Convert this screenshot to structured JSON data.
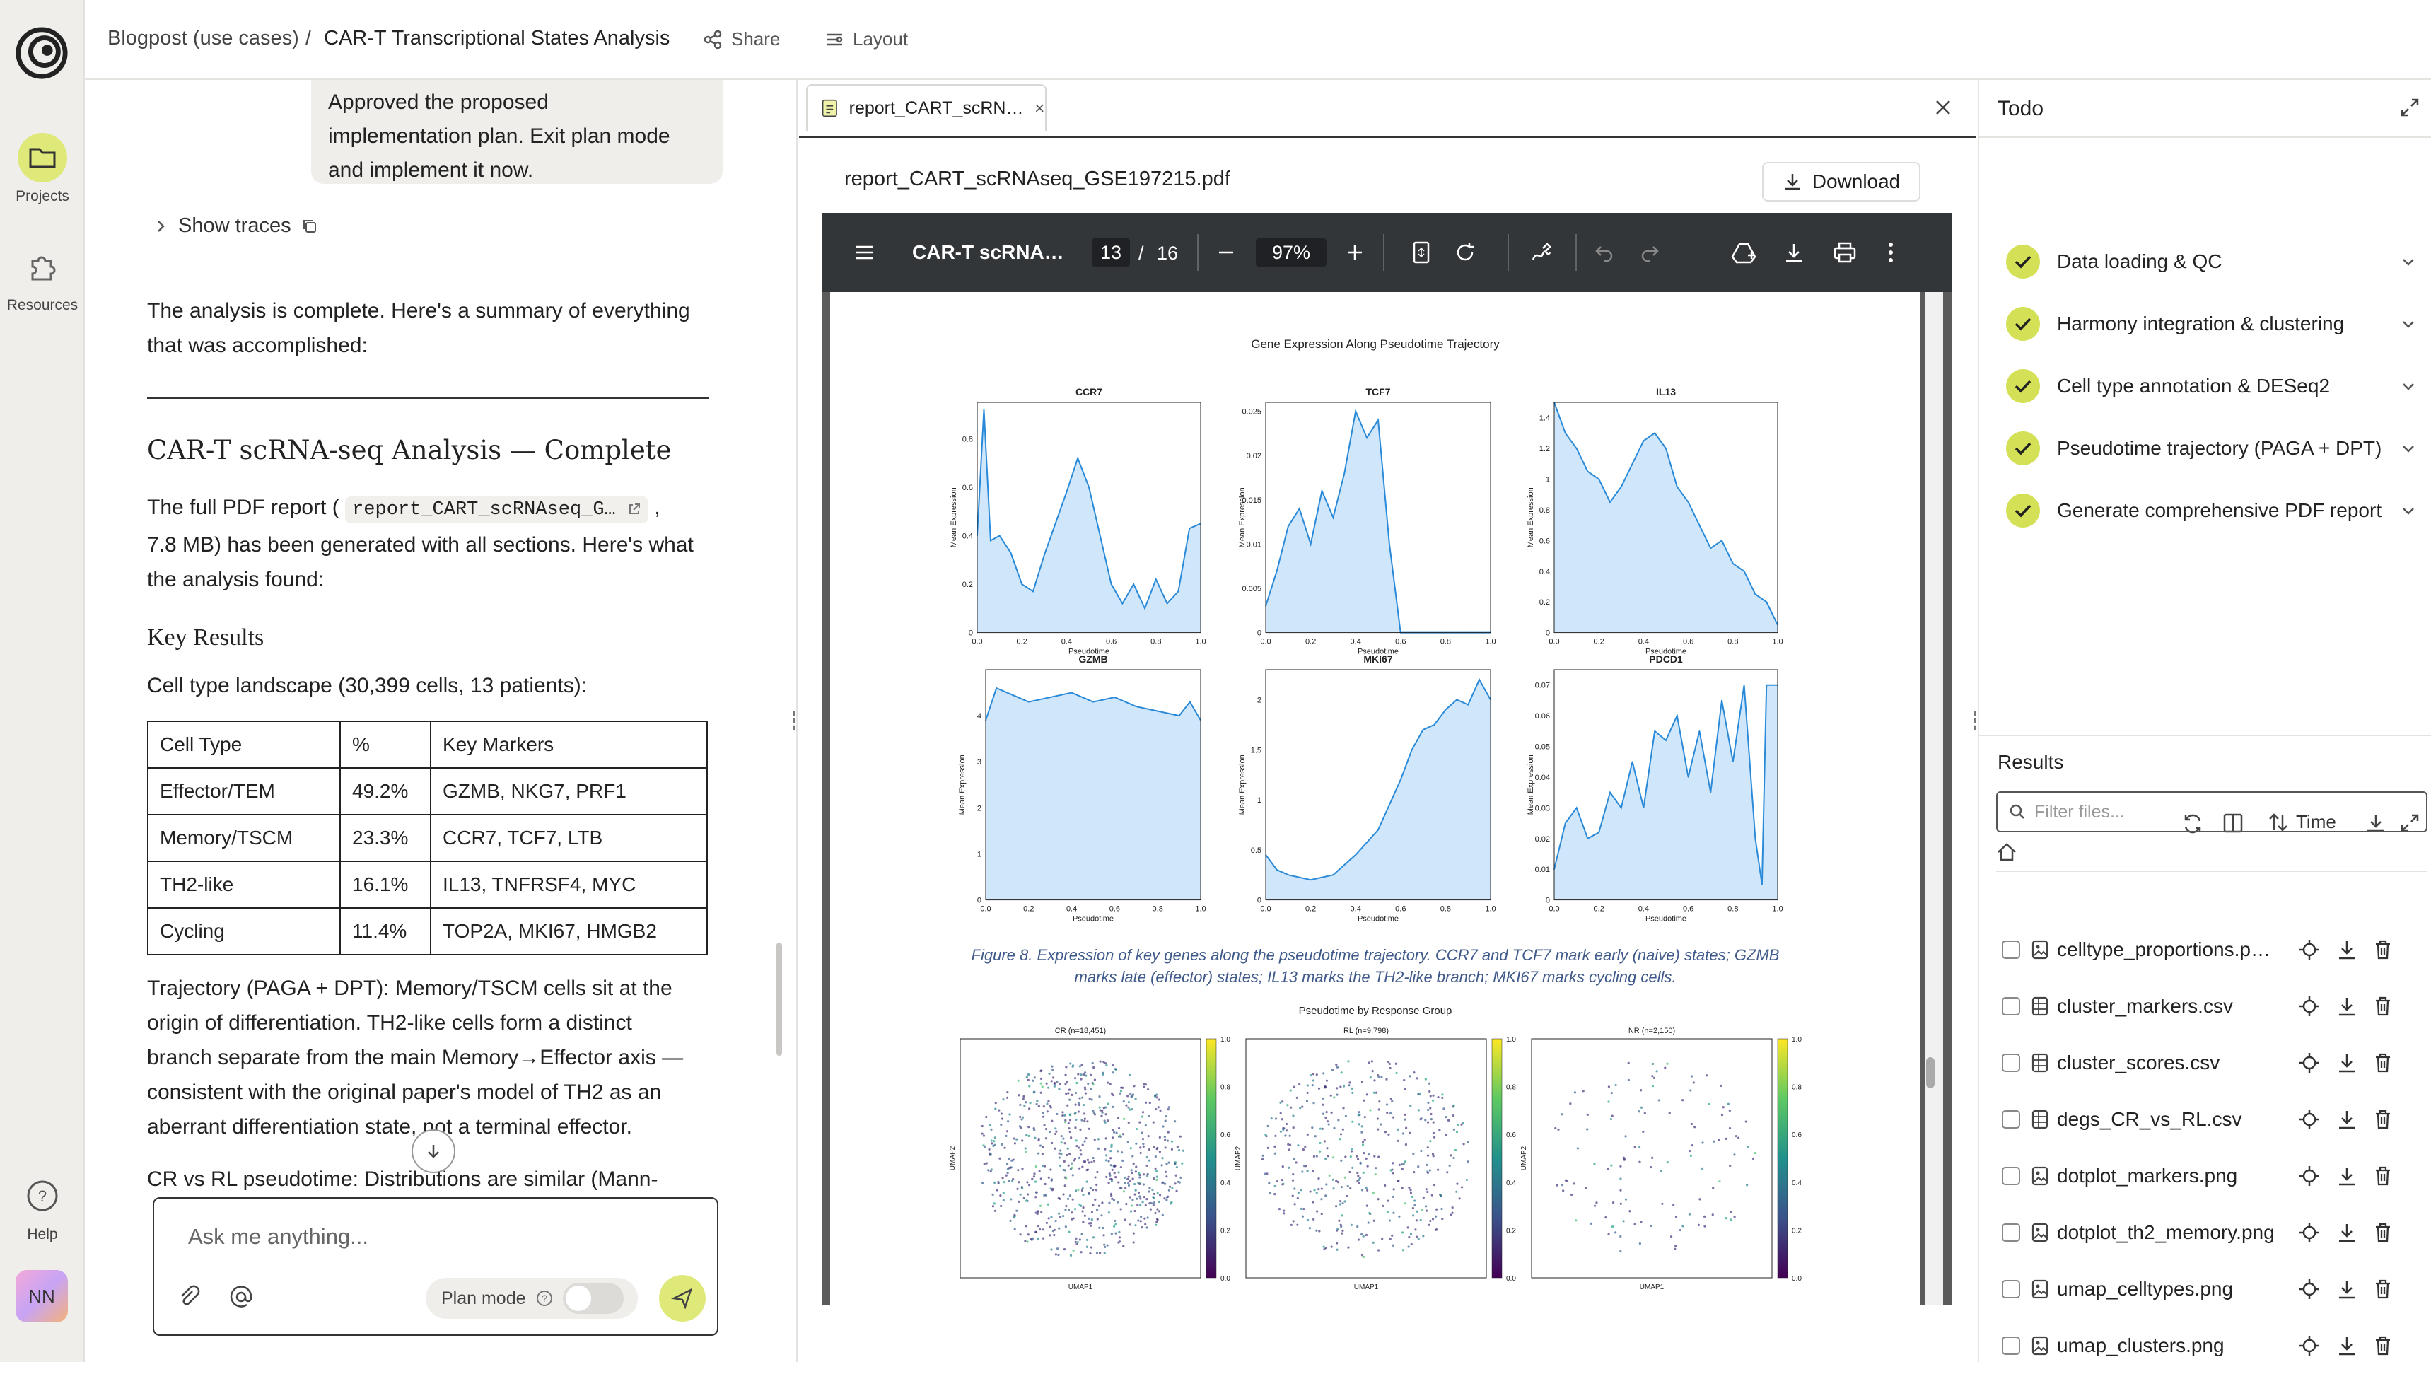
{
  "breadcrumb": {
    "project": "Blogpost (use cases)",
    "sep": "/",
    "page": "CAR-T Transcriptional States Analysis"
  },
  "toolbar": {
    "share": "Share",
    "layout": "Layout"
  },
  "rail": {
    "projects": "Projects",
    "resources": "Resources",
    "help": "Help",
    "avatar": "NN"
  },
  "chat": {
    "bubble": [
      "Approved the proposed",
      "implementation plan. Exit plan mode",
      "and implement it now."
    ],
    "show_traces": "Show traces",
    "summary": [
      "The analysis is complete. Here's a summary of everything",
      "that was accomplished:"
    ],
    "heading": "CAR-T scRNA-seq Analysis — Complete",
    "report_pre": "The full PDF report (",
    "report_file": "report_CART_scRNAseq_G…",
    "report_post": ",",
    "report_line2": "7.8 MB) has been generated with all sections. Here's what",
    "report_line3": "the analysis found:",
    "key_results": "Key Results",
    "landscape": "Cell type landscape (30,399 cells, 13 patients):",
    "table_header": [
      "Cell Type",
      "%",
      "Key Markers"
    ],
    "table_rows": [
      [
        "Effector/TEM",
        "49.2%",
        "GZMB, NKG7, PRF1"
      ],
      [
        "Memory/TSCM",
        "23.3%",
        "CCR7, TCF7, LTB"
      ],
      [
        "TH2-like",
        "16.1%",
        "IL13, TNFRSF4, MYC"
      ],
      [
        "Cycling",
        "11.4%",
        "TOP2A, MKI67, HMGB2"
      ]
    ],
    "trajectory": [
      "Trajectory (PAGA + DPT): Memory/TSCM cells sit at the",
      "origin of differentiation. TH2-like cells form a distinct",
      "branch separate from the main Memory→Effector axis —",
      "consistent with the original paper's model of TH2 as an",
      "aberrant differentiation state, not a terminal effector."
    ],
    "crvsrl": "CR vs RL pseudotime: Distributions are similar (Mann-",
    "input_placeholder": "Ask me anything...",
    "plan_mode": "Plan mode"
  },
  "pdf": {
    "tab_label": "report_CART_scRN…",
    "filename": "report_CART_scRNAseq_GSE197215.pdf",
    "download": "Download",
    "viewer_title": "CAR-T scRNA…",
    "page_current": "13",
    "page_sep": "/",
    "page_total": "16",
    "zoom": "97%",
    "figure_title": "Gene Expression Along Pseudotime Trajectory",
    "caption": [
      "Figure 8. Expression of key genes along the pseudotime trajectory. CCR7 and TCF7 mark early (naive) states; GZMB",
      "marks late (effector) states; IL13 marks the TH2-like branch; MKI67 marks cycling cells."
    ],
    "umap_title": "Pseudotime by Response Group"
  },
  "chart_data": [
    {
      "type": "area",
      "title": "CCR7",
      "xlabel": "Pseudotime",
      "ylabel": "Mean Expression",
      "xlim": [
        0,
        1
      ],
      "ylim": [
        0,
        0.95
      ],
      "yticks": [
        0,
        0.2,
        0.4,
        0.6,
        0.8
      ],
      "x": [
        0,
        0.03,
        0.06,
        0.1,
        0.15,
        0.2,
        0.25,
        0.3,
        0.35,
        0.4,
        0.45,
        0.5,
        0.55,
        0.6,
        0.65,
        0.7,
        0.75,
        0.8,
        0.85,
        0.9,
        0.95,
        1.0
      ],
      "y": [
        0.4,
        0.92,
        0.38,
        0.4,
        0.33,
        0.2,
        0.17,
        0.32,
        0.45,
        0.58,
        0.72,
        0.6,
        0.4,
        0.2,
        0.12,
        0.2,
        0.1,
        0.22,
        0.12,
        0.17,
        0.43,
        0.45
      ]
    },
    {
      "type": "area",
      "title": "TCF7",
      "xlabel": "Pseudotime",
      "ylabel": "Mean Expression",
      "xlim": [
        0,
        1
      ],
      "ylim": [
        0,
        0.026
      ],
      "yticks": [
        0,
        0.005,
        0.01,
        0.015,
        0.02,
        0.025
      ],
      "x": [
        0,
        0.05,
        0.1,
        0.15,
        0.2,
        0.25,
        0.3,
        0.35,
        0.4,
        0.45,
        0.5,
        0.55,
        0.6,
        0.65,
        0.7,
        0.8,
        0.9,
        1.0
      ],
      "y": [
        0.003,
        0.007,
        0.012,
        0.014,
        0.01,
        0.016,
        0.013,
        0.018,
        0.025,
        0.022,
        0.024,
        0.01,
        0.0,
        0.0,
        0.0,
        0.0,
        0.0,
        0.0
      ]
    },
    {
      "type": "area",
      "title": "IL13",
      "xlabel": "Pseudotime",
      "ylabel": "Mean Expression",
      "xlim": [
        0,
        1
      ],
      "ylim": [
        0,
        1.5
      ],
      "yticks": [
        0,
        0.2,
        0.4,
        0.6,
        0.8,
        1.0,
        1.2,
        1.4
      ],
      "x": [
        0,
        0.05,
        0.1,
        0.15,
        0.2,
        0.25,
        0.3,
        0.35,
        0.4,
        0.45,
        0.5,
        0.55,
        0.6,
        0.65,
        0.7,
        0.75,
        0.8,
        0.85,
        0.9,
        0.95,
        1.0
      ],
      "y": [
        1.5,
        1.3,
        1.2,
        1.05,
        1.0,
        0.85,
        0.95,
        1.1,
        1.25,
        1.3,
        1.2,
        0.95,
        0.85,
        0.7,
        0.55,
        0.6,
        0.45,
        0.4,
        0.25,
        0.2,
        0.05
      ]
    },
    {
      "type": "area",
      "title": "GZMB",
      "xlabel": "Pseudotime",
      "ylabel": "Mean Expression",
      "xlim": [
        0,
        1
      ],
      "ylim": [
        0,
        5
      ],
      "yticks": [
        0,
        1,
        2,
        3,
        4
      ],
      "x": [
        0,
        0.05,
        0.1,
        0.2,
        0.3,
        0.4,
        0.5,
        0.6,
        0.7,
        0.8,
        0.9,
        0.95,
        1.0
      ],
      "y": [
        3.9,
        4.6,
        4.5,
        4.3,
        4.4,
        4.5,
        4.3,
        4.4,
        4.2,
        4.1,
        4.0,
        4.3,
        3.9
      ]
    },
    {
      "type": "area",
      "title": "MKI67",
      "xlabel": "Pseudotime",
      "ylabel": "Mean Expression",
      "xlim": [
        0,
        1
      ],
      "ylim": [
        0,
        2.3
      ],
      "yticks": [
        0,
        0.5,
        1.0,
        1.5,
        2.0
      ],
      "x": [
        0,
        0.05,
        0.1,
        0.2,
        0.3,
        0.4,
        0.5,
        0.55,
        0.6,
        0.65,
        0.7,
        0.75,
        0.8,
        0.85,
        0.9,
        0.95,
        1.0
      ],
      "y": [
        0.45,
        0.3,
        0.25,
        0.2,
        0.25,
        0.45,
        0.7,
        0.95,
        1.2,
        1.5,
        1.7,
        1.75,
        1.9,
        2.0,
        1.95,
        2.2,
        2.0
      ]
    },
    {
      "type": "area",
      "title": "PDCD1",
      "xlabel": "Pseudotime",
      "ylabel": "Mean Expression",
      "xlim": [
        0,
        1
      ],
      "ylim": [
        0,
        0.075
      ],
      "yticks": [
        0,
        0.01,
        0.02,
        0.03,
        0.04,
        0.05,
        0.06,
        0.07
      ],
      "x": [
        0,
        0.05,
        0.1,
        0.15,
        0.2,
        0.25,
        0.3,
        0.35,
        0.4,
        0.45,
        0.5,
        0.55,
        0.6,
        0.65,
        0.7,
        0.75,
        0.8,
        0.85,
        0.9,
        0.93,
        0.95,
        1.0
      ],
      "y": [
        0.01,
        0.025,
        0.03,
        0.02,
        0.022,
        0.035,
        0.03,
        0.045,
        0.03,
        0.055,
        0.052,
        0.06,
        0.04,
        0.055,
        0.035,
        0.065,
        0.045,
        0.07,
        0.02,
        0.005,
        0.07,
        0.07
      ]
    },
    {
      "type": "scatter",
      "title": "CR (n=18,451)",
      "xlabel": "UMAP1",
      "ylabel": "UMAP2",
      "colorbar": [
        0,
        0.2,
        0.4,
        0.6,
        0.8,
        1.0
      ]
    },
    {
      "type": "scatter",
      "title": "RL (n=9,798)",
      "xlabel": "UMAP1",
      "ylabel": "UMAP2",
      "colorbar": [
        0,
        0.2,
        0.4,
        0.6,
        0.8,
        1.0
      ]
    },
    {
      "type": "scatter",
      "title": "NR (n=2,150)",
      "xlabel": "UMAP1",
      "ylabel": "UMAP2",
      "colorbar": [
        0,
        0.2,
        0.4,
        0.6,
        0.8,
        1.0
      ]
    }
  ],
  "todo": {
    "title": "Todo",
    "items": [
      "Data loading & QC",
      "Harmony integration & clustering",
      "Cell type annotation & DESeq2",
      "Pseudotime trajectory (PAGA + DPT)",
      "Generate comprehensive PDF report"
    ]
  },
  "results": {
    "title": "Results",
    "sort": "Time",
    "filter_placeholder": "Filter files...",
    "files": [
      "celltype_proportions.p…",
      "cluster_markers.csv",
      "cluster_scores.csv",
      "degs_CR_vs_RL.csv",
      "dotplot_markers.png",
      "dotplot_th2_memory.png",
      "umap_celltypes.png",
      "umap_clusters.png"
    ]
  },
  "colors": {
    "accent": "#d4e157",
    "fill": "#cfe6fb",
    "line": "#2a8ad8"
  }
}
